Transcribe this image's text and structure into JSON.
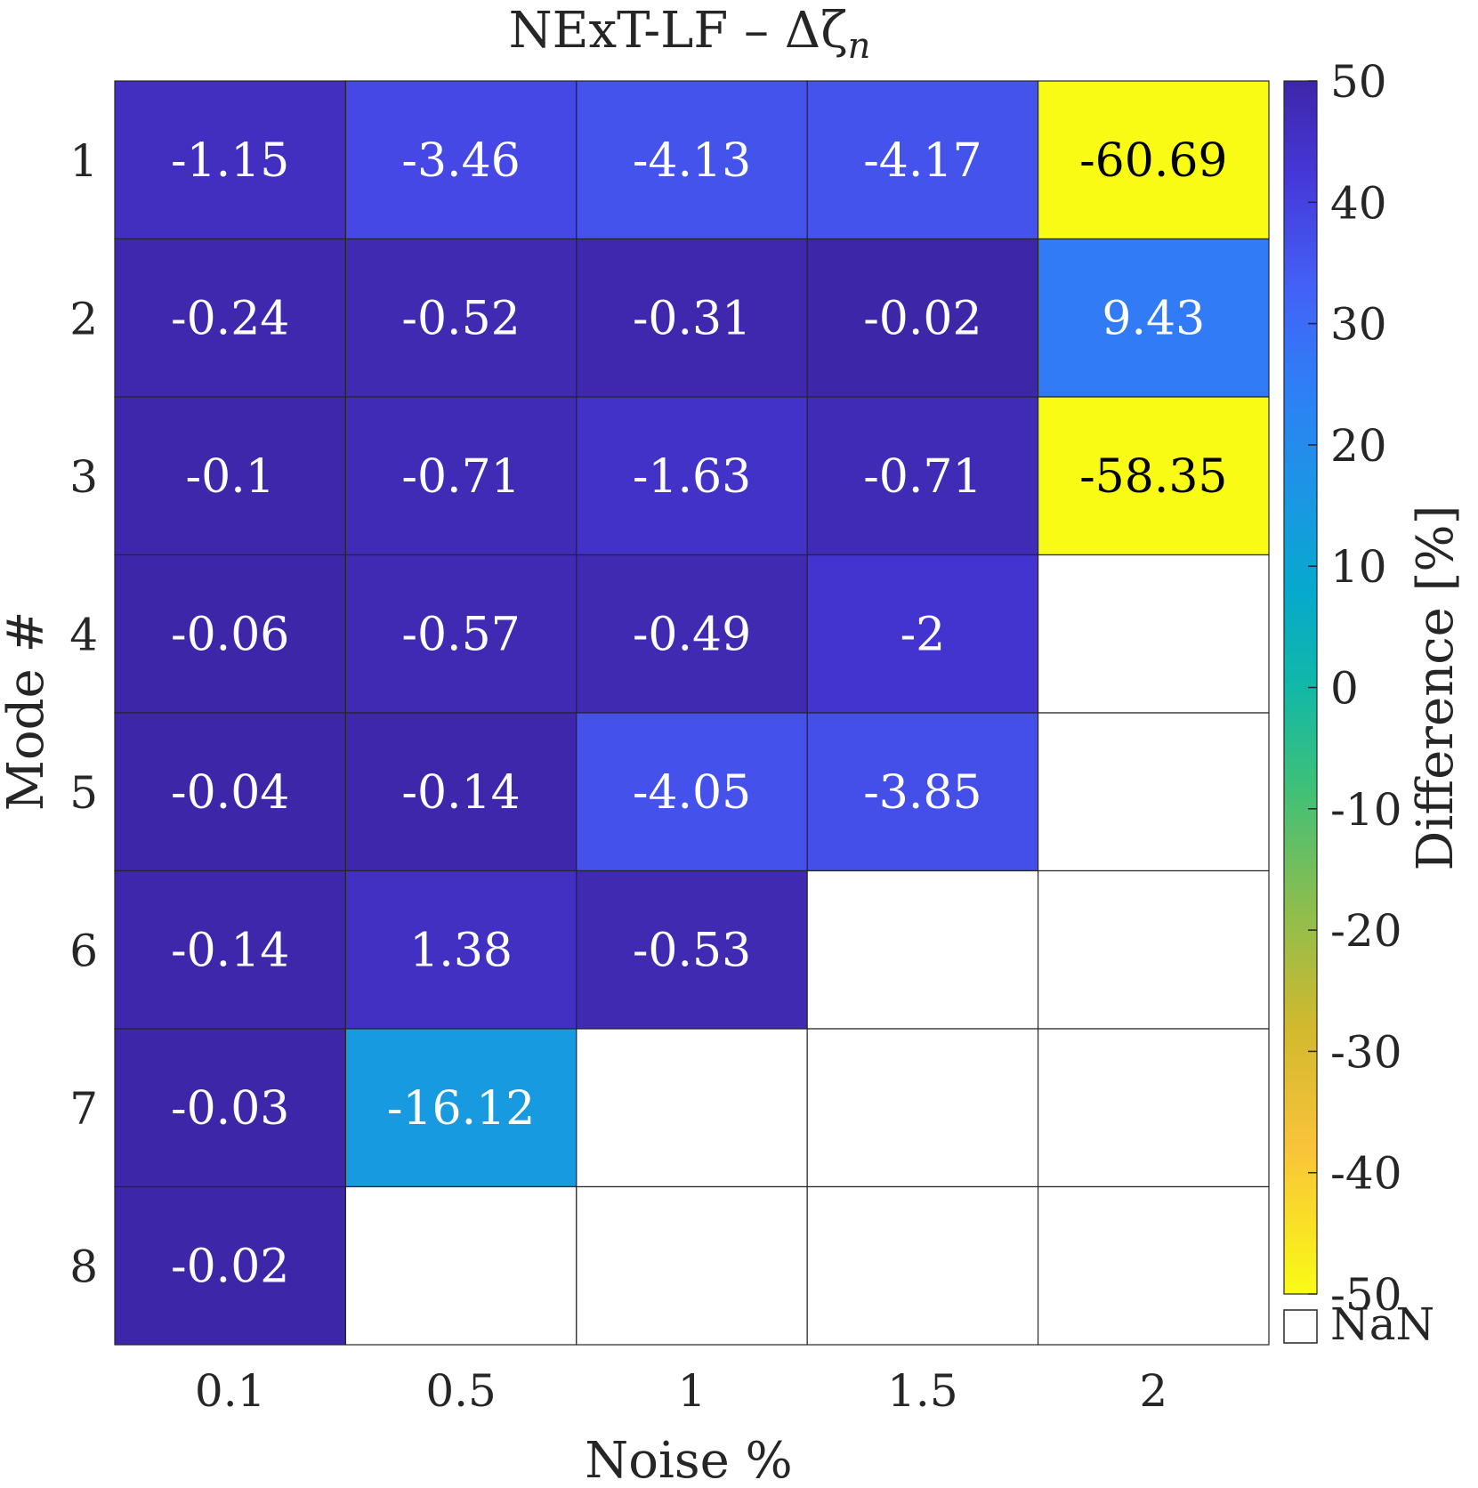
{
  "chart_data": {
    "type": "heatmap",
    "title": "NExT-LF – Δζ",
    "title_subscript": "n",
    "xlabel": "Noise %",
    "ylabel": "Mode #",
    "x_categories": [
      "0.1",
      "0.5",
      "1",
      "1.5",
      "2"
    ],
    "y_categories": [
      "1",
      "2",
      "3",
      "4",
      "5",
      "6",
      "7",
      "8"
    ],
    "values": [
      [
        -1.15,
        -3.46,
        -4.13,
        -4.17,
        -60.69
      ],
      [
        -0.24,
        -0.52,
        -0.31,
        -0.02,
        9.43
      ],
      [
        -0.1,
        -0.71,
        -1.63,
        -0.71,
        -58.35
      ],
      [
        -0.06,
        -0.57,
        -0.49,
        -2,
        null
      ],
      [
        -0.04,
        -0.14,
        -4.05,
        -3.85,
        null
      ],
      [
        -0.14,
        1.38,
        -0.53,
        null,
        null
      ],
      [
        -0.03,
        -16.12,
        null,
        null,
        null
      ],
      [
        -0.02,
        null,
        null,
        null,
        null
      ]
    ],
    "cell_labels": [
      [
        "-1.15",
        "-3.46",
        "-4.13",
        "-4.17",
        "-60.69"
      ],
      [
        "-0.24",
        "-0.52",
        "-0.31",
        "-0.02",
        "9.43"
      ],
      [
        "-0.1",
        "-0.71",
        "-1.63",
        "-0.71",
        "-58.35"
      ],
      [
        "-0.06",
        "-0.57",
        "-0.49",
        "-2",
        ""
      ],
      [
        "-0.04",
        "-0.14",
        "-4.05",
        "-3.85",
        ""
      ],
      [
        "-0.14",
        "1.38",
        "-0.53",
        "",
        ""
      ],
      [
        "-0.03",
        "-16.12",
        "",
        "",
        ""
      ],
      [
        "-0.02",
        "",
        "",
        "",
        ""
      ]
    ],
    "colorbar": {
      "label": "Difference [%]",
      "ticks": [
        "50",
        "40",
        "30",
        "20",
        "10",
        "0",
        "-10",
        "-20",
        "-30",
        "-40",
        "-50"
      ],
      "nan_label": "NaN"
    },
    "grid": true,
    "colors": {
      "near_zero": "#3e26a8",
      "mid_blue": "#4a52f0",
      "light_blue": "#2a95ea",
      "yellow": "#f9fb15",
      "nan": "#ffffff",
      "cell_text_dark_bg": "#ffffff",
      "cell_text_light_bg": "#000000"
    }
  }
}
